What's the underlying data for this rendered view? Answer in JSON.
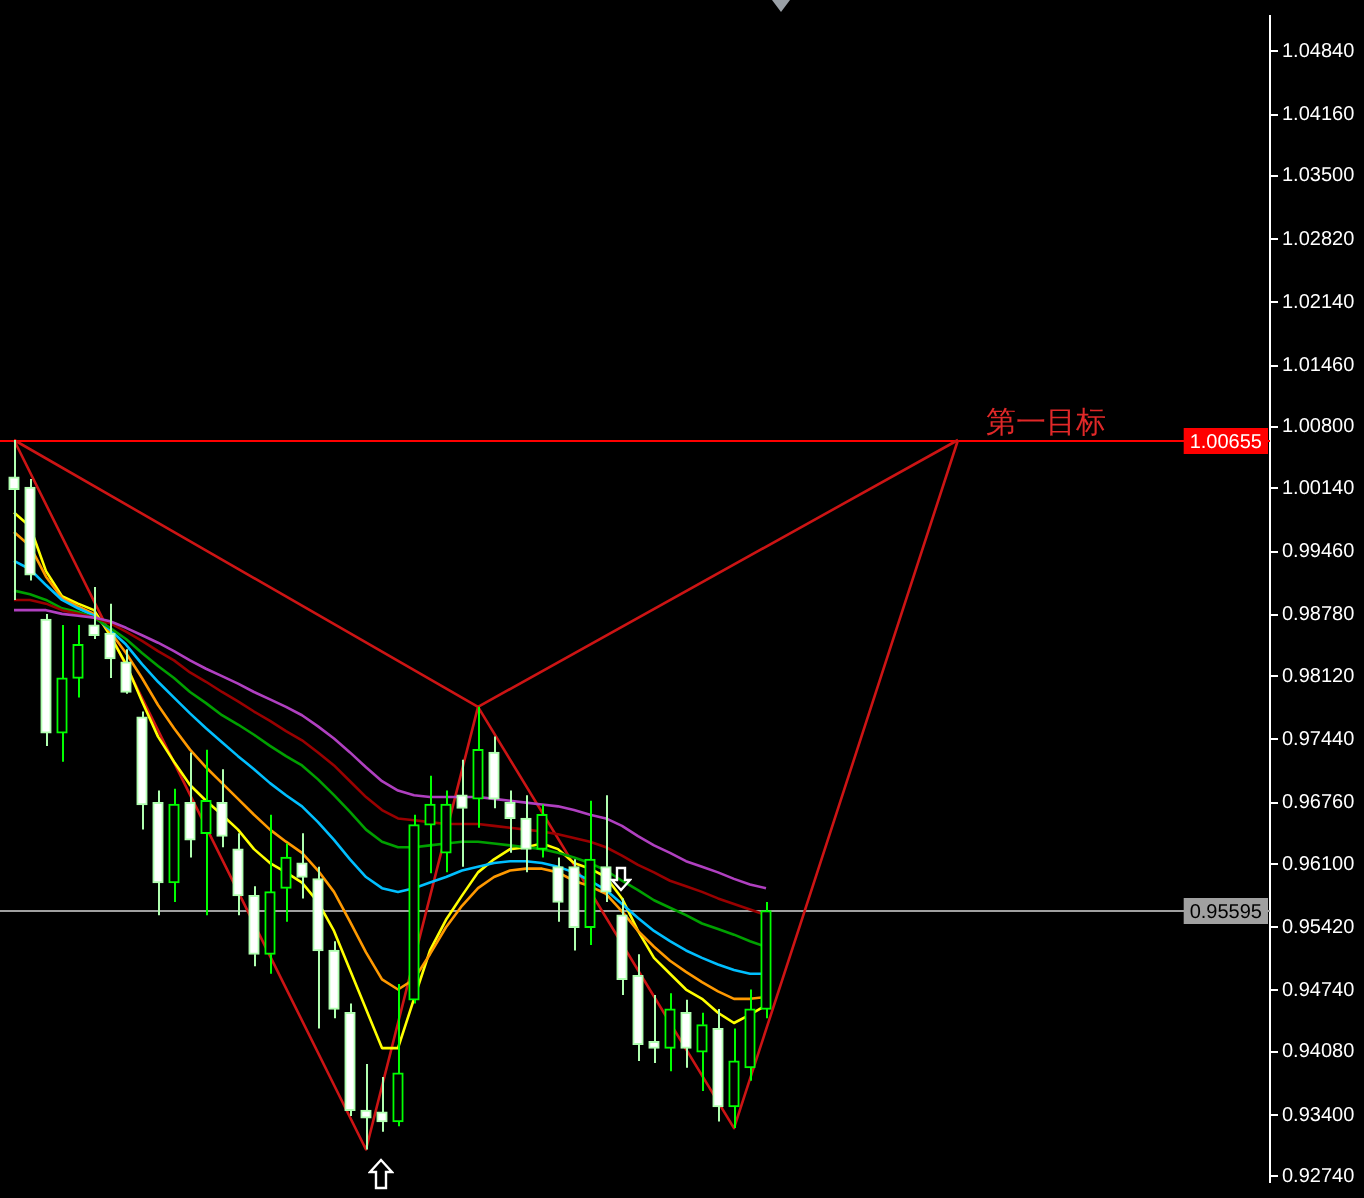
{
  "chart_data": {
    "type": "candlestick",
    "categories": [
      null,
      null,
      null,
      null,
      null,
      null,
      null,
      null,
      null,
      null,
      null,
      null,
      null,
      null,
      null,
      null,
      null,
      null,
      null,
      null,
      null,
      null,
      null,
      null,
      null,
      null,
      null,
      null,
      null,
      null,
      null,
      null,
      null,
      null,
      null,
      null,
      null,
      null,
      null,
      null,
      null,
      null,
      null,
      null,
      null,
      null,
      null,
      null,
      null,
      null,
      null,
      null,
      null,
      null,
      null,
      null,
      null,
      null,
      null,
      null,
      null,
      null,
      null,
      null,
      null,
      null,
      null,
      null,
      null,
      null,
      null,
      null,
      null,
      null,
      null,
      null,
      null,
      null,
      null
    ],
    "ohlc": [
      [
        1.0026,
        1.0066,
        0.9894,
        1.0013
      ],
      [
        1.0015,
        1.0024,
        0.9915,
        0.9921
      ],
      [
        0.9873,
        0.9879,
        0.9737,
        0.9751
      ],
      [
        0.9751,
        0.9867,
        0.972,
        0.981
      ],
      [
        0.981,
        0.9867,
        0.9789,
        0.9846
      ],
      [
        0.9867,
        0.9908,
        0.9852,
        0.9856
      ],
      [
        0.9858,
        0.989,
        0.981,
        0.9831
      ],
      [
        0.9827,
        0.9841,
        0.9793,
        0.9795
      ],
      [
        0.9768,
        0.9774,
        0.9647,
        0.9674
      ],
      [
        0.9676,
        0.9689,
        0.9555,
        0.959
      ],
      [
        0.959,
        0.9691,
        0.9569,
        0.9674
      ],
      [
        0.9676,
        0.973,
        0.9617,
        0.9636
      ],
      [
        0.9643,
        0.9733,
        0.9555,
        0.9678
      ],
      [
        0.9676,
        0.9712,
        0.9628,
        0.964
      ],
      [
        0.9626,
        0.9643,
        0.9555,
        0.9576
      ],
      [
        0.9576,
        0.9586,
        0.95,
        0.9513
      ],
      [
        0.9513,
        0.9663,
        0.9492,
        0.958
      ],
      [
        0.9584,
        0.9632,
        0.9548,
        0.9617
      ],
      [
        0.9611,
        0.9643,
        0.9573,
        0.9596
      ],
      [
        0.9594,
        0.9607,
        0.9433,
        0.9517
      ],
      [
        0.9517,
        0.9527,
        0.9444,
        0.9454
      ],
      [
        0.945,
        0.946,
        0.9339,
        0.9345
      ],
      [
        0.9345,
        0.9395,
        0.9303,
        0.9337
      ],
      [
        0.9343,
        0.9381,
        0.9322,
        0.9333
      ],
      [
        0.9333,
        0.9481,
        0.9328,
        0.9385
      ],
      [
        0.9464,
        0.9663,
        0.946,
        0.9652
      ],
      [
        0.9652,
        0.9705,
        0.96,
        0.9674
      ],
      [
        0.9622,
        0.9689,
        0.9601,
        0.9674
      ],
      [
        0.9684,
        0.9722,
        0.9607,
        0.967
      ],
      [
        0.968,
        0.9779,
        0.9649,
        0.9733
      ],
      [
        0.973,
        0.9747,
        0.967,
        0.968
      ],
      [
        0.9676,
        0.9689,
        0.9622,
        0.9659
      ],
      [
        0.9659,
        0.9684,
        0.9601,
        0.9626
      ],
      [
        0.9626,
        0.9674,
        0.9617,
        0.9663
      ],
      [
        0.9607,
        0.9617,
        0.9548,
        0.9569
      ],
      [
        0.9607,
        0.9615,
        0.9517,
        0.9542
      ],
      [
        0.9542,
        0.9678,
        0.9523,
        0.9615
      ],
      [
        0.9607,
        0.9684,
        0.9569,
        0.958
      ],
      [
        0.9555,
        0.9573,
        0.9469,
        0.9486
      ],
      [
        0.949,
        0.9513,
        0.9398,
        0.9416
      ],
      [
        0.9419,
        0.9469,
        0.9396,
        0.9412
      ],
      [
        0.9412,
        0.9471,
        0.9387,
        0.9454
      ],
      [
        0.945,
        0.9464,
        0.9391,
        0.9412
      ],
      [
        0.9408,
        0.945,
        0.9366,
        0.9437
      ],
      [
        0.9433,
        0.9454,
        0.9333,
        0.9349
      ],
      [
        0.9349,
        0.9433,
        0.9326,
        0.9398
      ],
      [
        0.9391,
        0.9475,
        0.9377,
        0.9454
      ],
      [
        0.9454,
        0.9569,
        0.9444,
        0.95595
      ],
      null,
      null,
      null,
      null,
      null,
      null,
      null,
      null,
      null,
      null,
      null,
      null,
      null,
      null,
      null,
      null,
      null,
      null,
      null,
      null,
      null,
      null,
      null,
      null,
      null,
      null,
      null,
      null,
      null,
      null,
      null
    ],
    "series": [
      {
        "type": "line",
        "color": "#b040c0",
        "values": [
          0.9883,
          0.9883,
          0.9883,
          0.9879,
          0.9877,
          0.9875,
          0.9871,
          0.9864,
          0.9856,
          0.9848,
          0.9839,
          0.9829,
          0.982,
          0.9812,
          0.9804,
          0.9795,
          0.9787,
          0.9779,
          0.977,
          0.9758,
          0.9745,
          0.973,
          0.9714,
          0.9699,
          0.9689,
          0.9684,
          0.9682,
          0.9682,
          0.9682,
          0.9682,
          0.968,
          0.9678,
          0.9676,
          0.9674,
          0.9672,
          0.9668,
          0.9663,
          0.9659,
          0.9651,
          0.964,
          0.963,
          0.9622,
          0.9613,
          0.9607,
          0.9601,
          0.9594,
          0.9588,
          0.9584,
          null,
          null,
          null,
          null,
          null,
          null,
          null,
          null,
          null,
          null,
          null,
          null,
          null,
          null,
          null,
          null,
          null,
          null,
          null,
          null,
          null,
          null,
          null,
          null,
          null,
          null,
          null,
          null,
          null,
          null,
          null
        ]
      },
      {
        "type": "line",
        "color": "#990000",
        "values": [
          0.9894,
          0.9894,
          0.989,
          0.9883,
          0.9879,
          0.9875,
          0.9869,
          0.986,
          0.985,
          0.9839,
          0.9829,
          0.9816,
          0.9806,
          0.9795,
          0.9785,
          0.9774,
          0.9764,
          0.9753,
          0.9743,
          0.973,
          0.9716,
          0.9699,
          0.9682,
          0.9668,
          0.9659,
          0.9657,
          0.9655,
          0.9653,
          0.9653,
          0.9653,
          0.9651,
          0.9649,
          0.9647,
          0.9645,
          0.9642,
          0.9638,
          0.9634,
          0.9628,
          0.9619,
          0.9609,
          0.9601,
          0.9592,
          0.9586,
          0.958,
          0.9573,
          0.9567,
          0.9561,
          0.9555,
          null,
          null,
          null,
          null,
          null,
          null,
          null,
          null,
          null,
          null,
          null,
          null,
          null,
          null,
          null,
          null,
          null,
          null,
          null,
          null,
          null,
          null,
          null,
          null,
          null,
          null,
          null,
          null,
          null,
          null,
          null
        ]
      },
      {
        "type": "line",
        "color": "#00a000",
        "values": [
          0.9904,
          0.99,
          0.9894,
          0.9885,
          0.9881,
          0.9875,
          0.9864,
          0.9852,
          0.9837,
          0.9823,
          0.981,
          0.9795,
          0.9783,
          0.977,
          0.976,
          0.9749,
          0.9737,
          0.9726,
          0.9716,
          0.9701,
          0.9684,
          0.9666,
          0.9647,
          0.9634,
          0.9628,
          0.9628,
          0.963,
          0.9632,
          0.9634,
          0.9634,
          0.9632,
          0.963,
          0.9628,
          0.9626,
          0.9622,
          0.9617,
          0.9611,
          0.9603,
          0.9592,
          0.9582,
          0.9571,
          0.9563,
          0.9555,
          0.9546,
          0.954,
          0.9534,
          0.9527,
          0.9521,
          null,
          null,
          null,
          null,
          null,
          null,
          null,
          null,
          null,
          null,
          null,
          null,
          null,
          null,
          null,
          null,
          null,
          null,
          null,
          null,
          null,
          null,
          null,
          null,
          null,
          null,
          null,
          null,
          null,
          null,
          null
        ]
      },
      {
        "type": "line",
        "color": "#00bfff",
        "values": [
          0.9936,
          0.9927,
          0.991,
          0.9894,
          0.9885,
          0.9877,
          0.9862,
          0.9846,
          0.9825,
          0.9806,
          0.9789,
          0.9772,
          0.9756,
          0.9741,
          0.9726,
          0.9712,
          0.9697,
          0.9684,
          0.9672,
          0.9655,
          0.9636,
          0.9615,
          0.9596,
          0.9584,
          0.958,
          0.9584,
          0.959,
          0.9596,
          0.9603,
          0.9607,
          0.9611,
          0.9613,
          0.9613,
          0.9611,
          0.9607,
          0.9601,
          0.9592,
          0.9582,
          0.9567,
          0.9552,
          0.9538,
          0.9527,
          0.9517,
          0.9509,
          0.9502,
          0.9496,
          0.9492,
          0.9492,
          null,
          null,
          null,
          null,
          null,
          null,
          null,
          null,
          null,
          null,
          null,
          null,
          null,
          null,
          null,
          null,
          null,
          null,
          null,
          null,
          null,
          null,
          null,
          null,
          null,
          null,
          null,
          null,
          null,
          null,
          null
        ]
      },
      {
        "type": "line",
        "color": "#ff9900",
        "values": [
          0.9967,
          0.9952,
          0.9919,
          0.9896,
          0.9887,
          0.9879,
          0.986,
          0.9837,
          0.981,
          0.9781,
          0.9756,
          0.9733,
          0.9714,
          0.9697,
          0.968,
          0.9663,
          0.9647,
          0.9634,
          0.9622,
          0.9603,
          0.958,
          0.9548,
          0.9515,
          0.9486,
          0.9475,
          0.9486,
          0.9513,
          0.9542,
          0.9565,
          0.9584,
          0.9596,
          0.9603,
          0.9605,
          0.9605,
          0.9601,
          0.9592,
          0.9586,
          0.9578,
          0.9559,
          0.9538,
          0.9521,
          0.9506,
          0.9494,
          0.9483,
          0.9473,
          0.9465,
          0.9465,
          0.9467,
          null,
          null,
          null,
          null,
          null,
          null,
          null,
          null,
          null,
          null,
          null,
          null,
          null,
          null,
          null,
          null,
          null,
          null,
          null,
          null,
          null,
          null,
          null,
          null,
          null,
          null,
          null,
          null,
          null,
          null,
          null
        ]
      },
      {
        "type": "line",
        "color": "#ffff00",
        "values": [
          0.9988,
          0.9973,
          0.9925,
          0.9898,
          0.989,
          0.9883,
          0.9856,
          0.9825,
          0.9785,
          0.9747,
          0.972,
          0.9695,
          0.9678,
          0.9663,
          0.9647,
          0.9626,
          0.9611,
          0.9601,
          0.959,
          0.9569,
          0.9538,
          0.9496,
          0.9454,
          0.9412,
          0.9412,
          0.9465,
          0.9517,
          0.955,
          0.9576,
          0.9601,
          0.9615,
          0.9626,
          0.9628,
          0.9632,
          0.9626,
          0.9611,
          0.9605,
          0.9596,
          0.9573,
          0.9538,
          0.9509,
          0.9492,
          0.9475,
          0.9465,
          0.945,
          0.9439,
          0.9448,
          0.9458,
          null,
          null,
          null,
          null,
          null,
          null,
          null,
          null,
          null,
          null,
          null,
          null,
          null,
          null,
          null,
          null,
          null,
          null,
          null,
          null,
          null,
          null,
          null,
          null,
          null,
          null,
          null,
          null,
          null,
          null,
          null
        ]
      },
      {
        "type": "line",
        "color": "#cc1414",
        "values": [
          1.0066,
          null,
          null,
          null,
          null,
          null,
          null,
          null,
          null,
          null,
          null,
          null,
          null,
          null,
          null,
          null,
          null,
          null,
          null,
          null,
          null,
          null,
          0.9303,
          null,
          null,
          null,
          null,
          null,
          null,
          0.9779,
          null,
          null,
          null,
          null,
          null,
          null,
          null,
          null,
          null,
          null,
          null,
          null,
          null,
          null,
          null,
          0.9326,
          null,
          null,
          null,
          null,
          null,
          null,
          null,
          null,
          null,
          null,
          null,
          null,
          null,
          1.0066,
          null,
          null,
          null,
          null,
          null,
          null,
          null,
          null,
          null,
          null,
          null,
          null,
          null,
          null,
          null,
          null,
          null,
          null,
          null
        ]
      },
      {
        "type": "line",
        "color": "#cc1414",
        "values": [
          1.0066,
          null,
          null,
          null,
          null,
          null,
          null,
          null,
          null,
          null,
          null,
          null,
          null,
          null,
          null,
          null,
          null,
          null,
          null,
          null,
          null,
          null,
          null,
          null,
          null,
          null,
          null,
          null,
          null,
          0.9779,
          null,
          null,
          null,
          null,
          null,
          null,
          null,
          null,
          null,
          null,
          null,
          null,
          null,
          null,
          null,
          null,
          null,
          null,
          null,
          null,
          null,
          null,
          null,
          null,
          null,
          null,
          null,
          null,
          null,
          1.0066,
          null,
          null,
          null,
          null,
          null,
          null,
          null,
          null,
          null,
          null,
          null,
          null,
          null,
          null,
          null,
          null,
          null,
          null,
          null
        ]
      }
    ],
    "ylim": [
      0.9268,
      1.0522
    ],
    "yticks": [
      {
        "value": 1.0484,
        "label": "1.04840"
      },
      {
        "value": 1.0416,
        "label": "1.04160"
      },
      {
        "value": 1.035,
        "label": "1.03500"
      },
      {
        "value": 1.0282,
        "label": "1.02820"
      },
      {
        "value": 1.0214,
        "label": "1.02140"
      },
      {
        "value": 1.0146,
        "label": "1.01460"
      },
      {
        "value": 1.008,
        "label": "1.00800"
      },
      {
        "value": 1.0014,
        "label": "1.00140"
      },
      {
        "value": 0.9946,
        "label": "0.99460"
      },
      {
        "value": 0.9878,
        "label": "0.98780"
      },
      {
        "value": 0.9812,
        "label": "0.98120"
      },
      {
        "value": 0.9744,
        "label": "0.97440"
      },
      {
        "value": 0.9676,
        "label": "0.96760"
      },
      {
        "value": 0.961,
        "label": "0.96100"
      },
      {
        "value": 0.9542,
        "label": "0.95420"
      },
      {
        "value": 0.9474,
        "label": "0.94740"
      },
      {
        "value": 0.9408,
        "label": "0.94080"
      },
      {
        "value": 0.934,
        "label": "0.93400"
      },
      {
        "value": 0.9274,
        "label": "0.92740"
      }
    ],
    "ref_lines": [
      {
        "axis": "y",
        "value": 1.00655,
        "label": "1.00655",
        "color": "#ff0000"
      },
      {
        "axis": "y",
        "value": 0.95595,
        "label": "0.95595",
        "color": "#a0a0a0"
      }
    ],
    "annotations": [
      {
        "text": "第一目标",
        "y": 1.00655
      }
    ],
    "tick_labels": "y"
  }
}
